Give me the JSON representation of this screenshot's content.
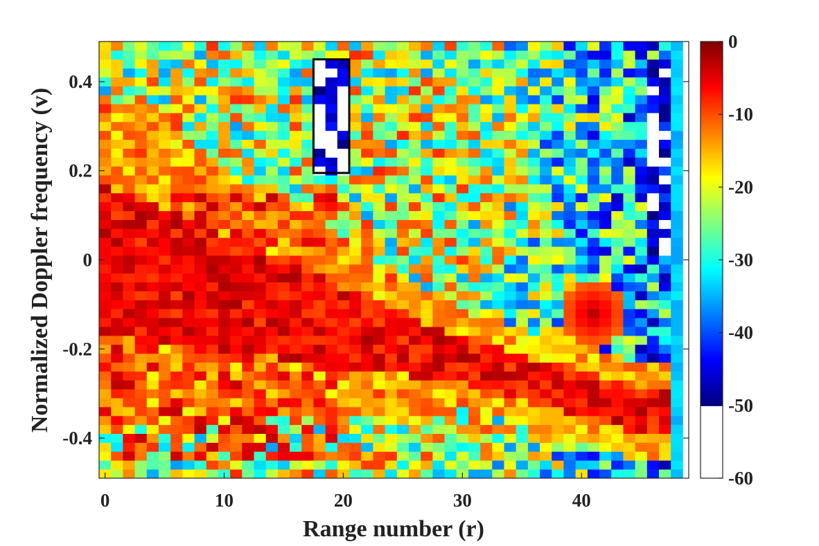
{
  "chart_data": {
    "type": "heatmap",
    "title": "",
    "xlabel": "Range number (r)",
    "ylabel": "Normalized Doppler frequency (v)",
    "x_ticks": [
      "0",
      "10",
      "20",
      "30",
      "40"
    ],
    "y_ticks": [
      "0.4",
      "0.2",
      "0",
      "-0.2",
      "-0.4"
    ],
    "xlim": [
      -0.5,
      49
    ],
    "ylim": [
      -0.49,
      0.49
    ],
    "colorbar": {
      "ticks": [
        "0",
        "-10",
        "-20",
        "-30",
        "-40",
        "-50",
        "-60"
      ],
      "range": [
        -60,
        0
      ],
      "clip_below": -50,
      "clip_color": "#ffffff"
    },
    "colormap": "jet",
    "grid": false,
    "annotations": [
      {
        "type": "rectangle",
        "x_range": [
          17.5,
          20.5
        ],
        "y_range": [
          0.195,
          0.45
        ],
        "color": "#000000",
        "note_shape": "highlighted region of low power"
      }
    ],
    "value_description_dB": "power in dB; strong (0 dB) clutter ridge running from (r=0, v=0) down to (r≈44, v≈-0.33); isolated strong patch near r≈41, v≈-0.12; weak (≤-50 dB) cells inside highlighted box and along r≈46–47 column near v≈0.05–0.45; cells in range 0–48 at Doppler step ≈0.02"
  }
}
